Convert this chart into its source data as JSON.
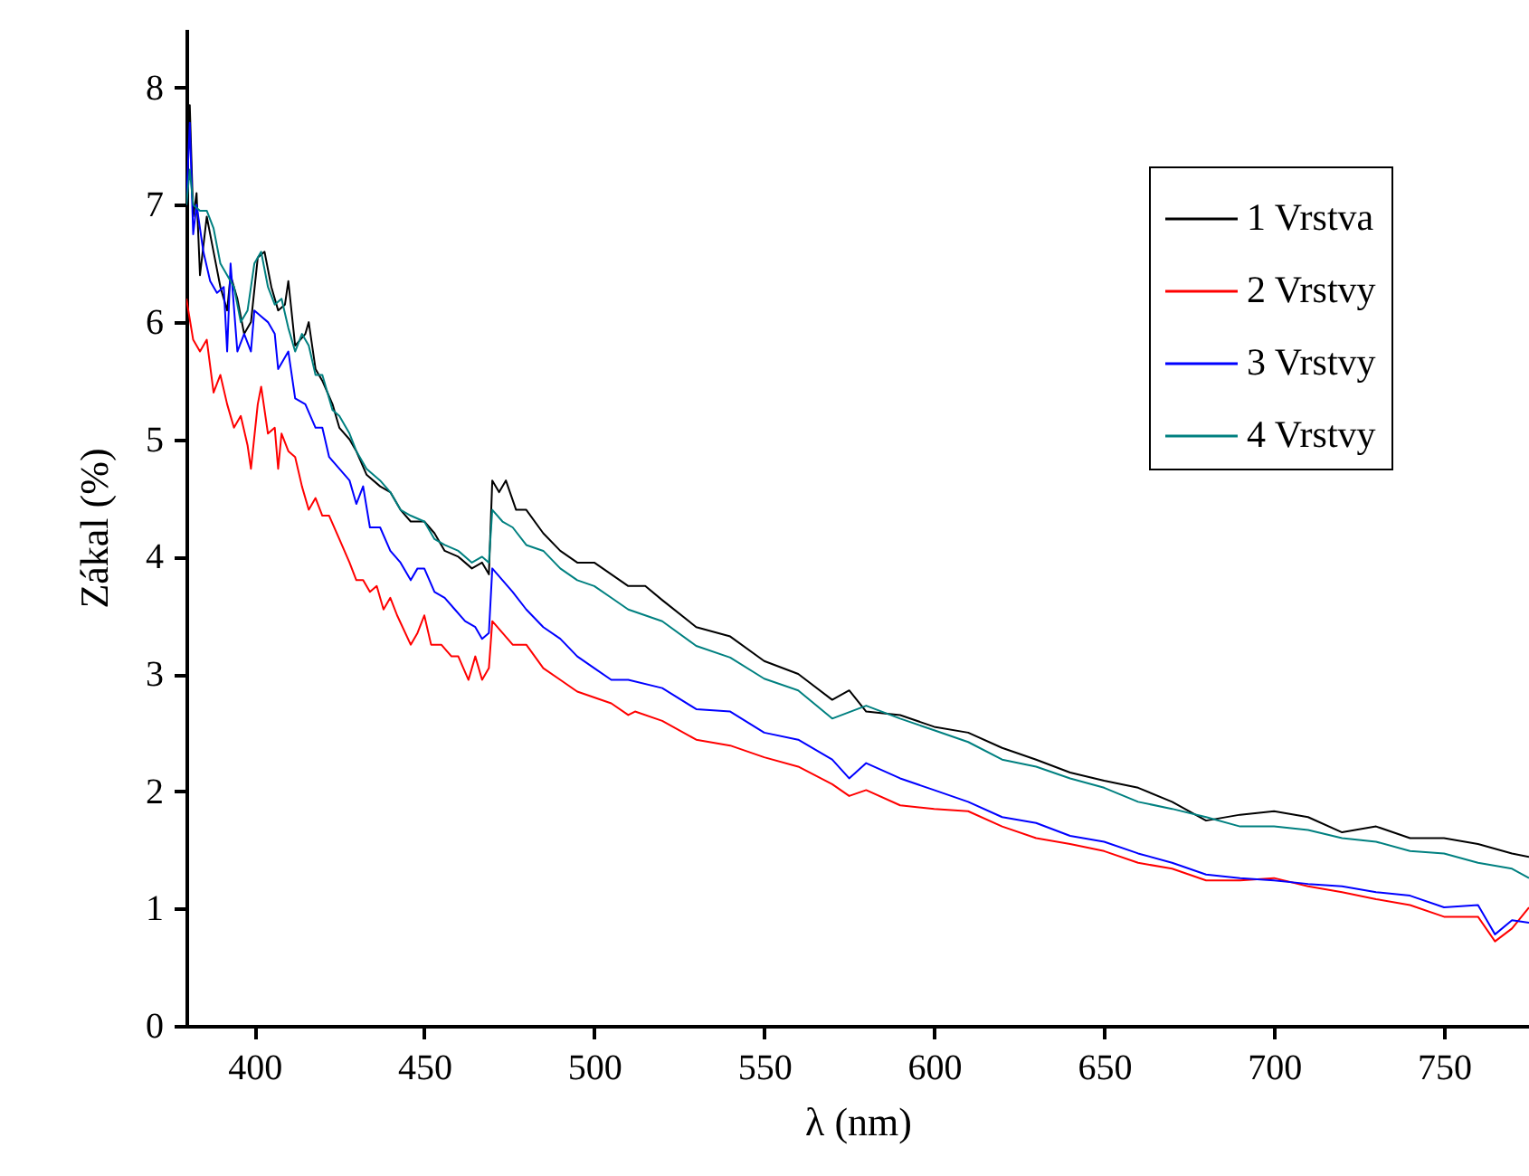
{
  "chart_data": {
    "type": "line",
    "xlabel": "λ (nm)",
    "ylabel": "Zákal (%)",
    "xlim": [
      380,
      775
    ],
    "xticks": [
      400,
      450,
      500,
      550,
      600,
      650,
      700,
      750
    ],
    "ylim": [
      0,
      8.5
    ],
    "yticks": [
      0,
      1,
      2,
      3,
      4,
      5,
      6,
      7,
      8
    ],
    "grid": false,
    "legend": "top right",
    "line_style": "solid",
    "marker": "none",
    "series": [
      {
        "name": "1 Vrstva",
        "color": "#000000",
        "x": [
          380,
          381,
          382,
          383,
          384,
          386,
          388,
          390,
          392,
          393,
          395,
          397,
          399,
          401,
          403,
          405,
          407,
          409,
          410,
          412,
          415,
          416,
          418,
          420,
          423,
          425,
          428,
          430,
          433,
          437,
          440,
          443,
          446,
          450,
          453,
          456,
          460,
          464,
          467,
          469,
          470,
          472,
          474,
          477,
          480,
          485,
          490,
          495,
          500,
          505,
          510,
          515,
          520,
          530,
          540,
          550,
          560,
          570,
          575,
          580,
          590,
          600,
          610,
          620,
          630,
          640,
          650,
          660,
          670,
          680,
          690,
          700,
          710,
          720,
          730,
          740,
          750,
          760,
          770,
          775
        ],
        "values": [
          7.1,
          7.85,
          6.9,
          7.1,
          6.4,
          6.9,
          6.6,
          6.3,
          6.1,
          6.4,
          6.2,
          5.9,
          6.0,
          6.55,
          6.6,
          6.3,
          6.1,
          6.15,
          6.35,
          5.8,
          5.9,
          6.0,
          5.6,
          5.5,
          5.3,
          5.1,
          5.0,
          4.9,
          4.7,
          4.6,
          4.55,
          4.4,
          4.3,
          4.3,
          4.2,
          4.05,
          4.0,
          3.9,
          3.95,
          3.85,
          4.65,
          4.55,
          4.65,
          4.4,
          4.4,
          4.2,
          4.05,
          3.95,
          3.95,
          3.85,
          3.75,
          3.75,
          3.63,
          3.4,
          3.32,
          3.11,
          3.0,
          2.78,
          2.86,
          2.68,
          2.65,
          2.55,
          2.5,
          2.37,
          2.27,
          2.16,
          2.09,
          2.03,
          1.91,
          1.75,
          1.8,
          1.83,
          1.78,
          1.65,
          1.7,
          1.6,
          1.6,
          1.55,
          1.47,
          1.44
        ]
      },
      {
        "name": "2 Vrstvy",
        "color": "#ff0000",
        "x": [
          380,
          382,
          384,
          386,
          388,
          390,
          392,
          394,
          396,
          398,
          399,
          401,
          402,
          404,
          406,
          407,
          408,
          410,
          412,
          414,
          416,
          418,
          420,
          422,
          425,
          428,
          430,
          432,
          434,
          436,
          438,
          440,
          442,
          446,
          448,
          450,
          452,
          455,
          458,
          460,
          463,
          465,
          467,
          469,
          470,
          473,
          476,
          480,
          485,
          490,
          495,
          500,
          505,
          510,
          512,
          520,
          530,
          540,
          550,
          560,
          570,
          575,
          580,
          590,
          600,
          610,
          620,
          630,
          640,
          650,
          660,
          670,
          680,
          690,
          700,
          710,
          720,
          730,
          740,
          750,
          760,
          765,
          770,
          775
        ],
        "values": [
          6.2,
          5.85,
          5.75,
          5.85,
          5.4,
          5.55,
          5.3,
          5.1,
          5.2,
          4.95,
          4.75,
          5.3,
          5.45,
          5.05,
          5.1,
          4.75,
          5.05,
          4.9,
          4.85,
          4.6,
          4.4,
          4.5,
          4.35,
          4.35,
          4.15,
          3.95,
          3.8,
          3.8,
          3.7,
          3.75,
          3.55,
          3.65,
          3.5,
          3.25,
          3.35,
          3.5,
          3.25,
          3.25,
          3.15,
          3.15,
          2.95,
          3.15,
          2.95,
          3.05,
          3.45,
          3.35,
          3.25,
          3.25,
          3.05,
          2.95,
          2.85,
          2.8,
          2.75,
          2.65,
          2.68,
          2.6,
          2.44,
          2.39,
          2.29,
          2.21,
          2.06,
          1.96,
          2.01,
          1.88,
          1.85,
          1.83,
          1.7,
          1.6,
          1.55,
          1.49,
          1.39,
          1.34,
          1.24,
          1.24,
          1.26,
          1.19,
          1.14,
          1.08,
          1.03,
          0.93,
          0.93,
          0.72,
          0.83,
          1.01
        ]
      },
      {
        "name": "3 Vrstvy",
        "color": "#0000ff",
        "x": [
          380,
          381,
          382,
          383,
          385,
          387,
          389,
          391,
          392,
          393,
          395,
          397,
          399,
          400,
          402,
          404,
          406,
          407,
          410,
          412,
          415,
          418,
          420,
          422,
          425,
          428,
          430,
          432,
          434,
          437,
          440,
          443,
          446,
          448,
          450,
          453,
          456,
          459,
          462,
          465,
          467,
          469,
          470,
          473,
          476,
          480,
          485,
          490,
          495,
          500,
          505,
          510,
          520,
          530,
          540,
          550,
          560,
          570,
          575,
          580,
          590,
          600,
          610,
          620,
          630,
          640,
          650,
          660,
          670,
          680,
          690,
          700,
          710,
          720,
          730,
          740,
          750,
          760,
          765,
          770,
          775
        ],
        "values": [
          7.0,
          7.7,
          6.75,
          7.0,
          6.6,
          6.35,
          6.25,
          6.3,
          5.75,
          6.5,
          5.75,
          5.9,
          5.75,
          6.1,
          6.05,
          6.0,
          5.9,
          5.6,
          5.75,
          5.35,
          5.3,
          5.1,
          5.1,
          4.85,
          4.75,
          4.65,
          4.45,
          4.6,
          4.25,
          4.25,
          4.05,
          3.95,
          3.8,
          3.9,
          3.9,
          3.7,
          3.65,
          3.55,
          3.45,
          3.4,
          3.3,
          3.35,
          3.9,
          3.8,
          3.7,
          3.55,
          3.4,
          3.3,
          3.15,
          3.05,
          2.95,
          2.95,
          2.88,
          2.7,
          2.68,
          2.5,
          2.44,
          2.27,
          2.11,
          2.24,
          2.11,
          2.01,
          1.91,
          1.78,
          1.73,
          1.62,
          1.57,
          1.47,
          1.39,
          1.29,
          1.26,
          1.24,
          1.21,
          1.19,
          1.14,
          1.11,
          1.01,
          1.03,
          0.78,
          0.9,
          0.88
        ]
      },
      {
        "name": "4 Vrstvy",
        "color": "#008080",
        "x": [
          380,
          381,
          382,
          384,
          386,
          388,
          390,
          392,
          394,
          396,
          398,
          400,
          402,
          404,
          406,
          408,
          410,
          412,
          414,
          416,
          418,
          420,
          423,
          425,
          428,
          430,
          433,
          437,
          440,
          443,
          446,
          450,
          453,
          456,
          460,
          464,
          467,
          469,
          470,
          473,
          476,
          480,
          485,
          490,
          495,
          500,
          505,
          510,
          520,
          530,
          540,
          550,
          560,
          570,
          580,
          590,
          600,
          610,
          620,
          630,
          640,
          650,
          660,
          670,
          680,
          690,
          700,
          710,
          720,
          730,
          740,
          750,
          760,
          770,
          775
        ],
        "values": [
          7.0,
          7.3,
          7.0,
          6.95,
          6.95,
          6.8,
          6.5,
          6.4,
          6.3,
          6.0,
          6.1,
          6.5,
          6.6,
          6.3,
          6.15,
          6.2,
          5.95,
          5.75,
          5.9,
          5.8,
          5.55,
          5.55,
          5.25,
          5.2,
          5.05,
          4.9,
          4.75,
          4.65,
          4.55,
          4.4,
          4.35,
          4.3,
          4.15,
          4.1,
          4.05,
          3.95,
          4.0,
          3.95,
          4.4,
          4.3,
          4.25,
          4.1,
          4.05,
          3.9,
          3.8,
          3.75,
          3.65,
          3.55,
          3.45,
          3.24,
          3.14,
          2.96,
          2.86,
          2.62,
          2.73,
          2.62,
          2.52,
          2.42,
          2.27,
          2.21,
          2.11,
          2.03,
          1.91,
          1.85,
          1.78,
          1.7,
          1.7,
          1.67,
          1.6,
          1.57,
          1.49,
          1.47,
          1.39,
          1.34,
          1.26
        ]
      }
    ]
  }
}
